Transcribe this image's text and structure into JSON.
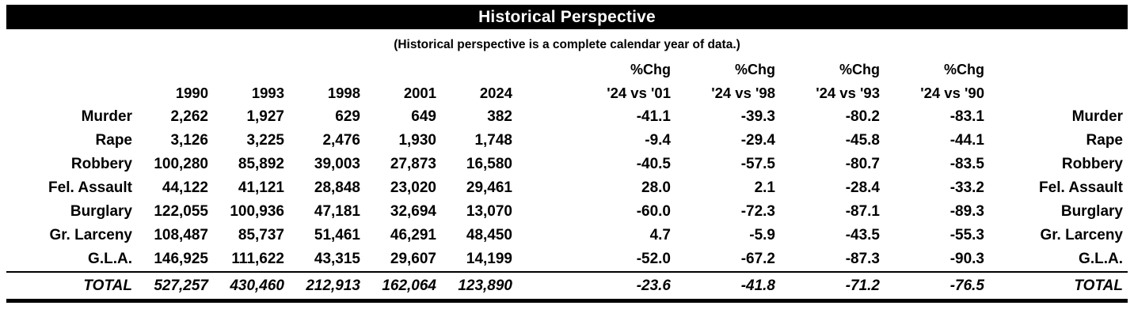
{
  "title": "Historical Perspective",
  "subtitle": "(Historical perspective is a complete calendar year of data.)",
  "colors": {
    "header_bg": "#000000",
    "header_text": "#ffffff",
    "body_text": "#000000",
    "background": "#ffffff"
  },
  "table": {
    "years": [
      "1990",
      "1993",
      "1998",
      "2001",
      "2024"
    ],
    "pct_change_headers": [
      {
        "line1": "%Chg",
        "line2": "'24 vs '01"
      },
      {
        "line1": "%Chg",
        "line2": "'24 vs '98"
      },
      {
        "line1": "%Chg",
        "line2": "'24 vs '93"
      },
      {
        "line1": "%Chg",
        "line2": "'24 vs '90"
      }
    ],
    "rows": [
      {
        "label": "Murder",
        "values": [
          "2,262",
          "1,927",
          "629",
          "649",
          "382"
        ],
        "pct_change": [
          "-41.1",
          "-39.3",
          "-80.2",
          "-83.1"
        ]
      },
      {
        "label": "Rape",
        "values": [
          "3,126",
          "3,225",
          "2,476",
          "1,930",
          "1,748"
        ],
        "pct_change": [
          "-9.4",
          "-29.4",
          "-45.8",
          "-44.1"
        ]
      },
      {
        "label": "Robbery",
        "values": [
          "100,280",
          "85,892",
          "39,003",
          "27,873",
          "16,580"
        ],
        "pct_change": [
          "-40.5",
          "-57.5",
          "-80.7",
          "-83.5"
        ]
      },
      {
        "label": "Fel. Assault",
        "values": [
          "44,122",
          "41,121",
          "28,848",
          "23,020",
          "29,461"
        ],
        "pct_change": [
          "28.0",
          "2.1",
          "-28.4",
          "-33.2"
        ]
      },
      {
        "label": "Burglary",
        "values": [
          "122,055",
          "100,936",
          "47,181",
          "32,694",
          "13,070"
        ],
        "pct_change": [
          "-60.0",
          "-72.3",
          "-87.1",
          "-89.3"
        ]
      },
      {
        "label": "Gr. Larceny",
        "values": [
          "108,487",
          "85,737",
          "51,461",
          "46,291",
          "48,450"
        ],
        "pct_change": [
          "4.7",
          "-5.9",
          "-43.5",
          "-55.3"
        ]
      },
      {
        "label": "G.L.A.",
        "values": [
          "146,925",
          "111,622",
          "43,315",
          "29,607",
          "14,199"
        ],
        "pct_change": [
          "-52.0",
          "-67.2",
          "-87.3",
          "-90.3"
        ]
      }
    ],
    "total_row": {
      "label": "TOTAL",
      "values": [
        "527,257",
        "430,460",
        "212,913",
        "162,064",
        "123,890"
      ],
      "pct_change": [
        "-23.6",
        "-41.8",
        "-71.2",
        "-76.5"
      ]
    }
  }
}
